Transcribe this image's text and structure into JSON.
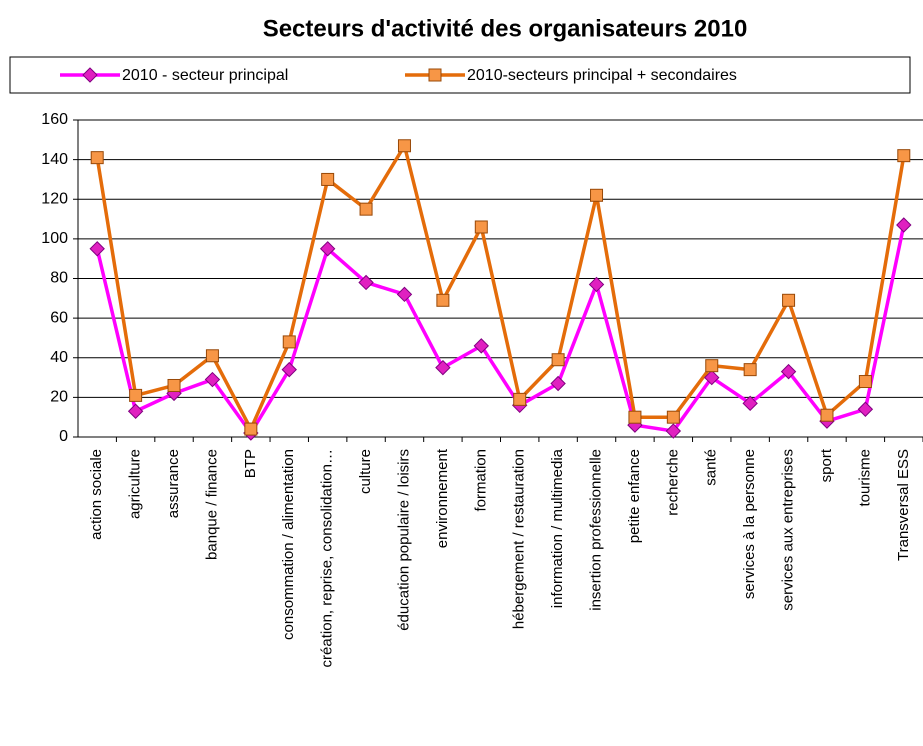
{
  "chart_data": {
    "type": "line",
    "title": "Secteurs d'activité des organisateurs 2010",
    "categories": [
      "action sociale",
      "agriculture",
      "assurance",
      "banque / finance",
      "BTP",
      "consommation / alimentation",
      "création, reprise, consolidation…",
      "culture",
      "éducation populaire / loisirs",
      "environnement",
      "formation",
      "hébergement / restauration",
      "information / multimedia",
      "insertion professionnelle",
      "petite enfance",
      "recherche",
      "santé",
      "services à la personne",
      "services aux entreprises",
      "sport",
      "tourisme",
      "Transversal ESS"
    ],
    "series": [
      {
        "name": "2010 - secteur principal",
        "color": "#ff00ff",
        "marker": "diamond",
        "values": [
          95,
          13,
          22,
          29,
          2,
          34,
          95,
          78,
          72,
          35,
          46,
          16,
          27,
          77,
          6,
          3,
          30,
          17,
          33,
          8,
          14,
          107
        ]
      },
      {
        "name": "2010-secteurs principal + secondaires",
        "color": "#e46c0a",
        "marker": "square",
        "values": [
          141,
          21,
          26,
          41,
          4,
          48,
          130,
          115,
          147,
          69,
          106,
          19,
          39,
          122,
          10,
          10,
          36,
          34,
          69,
          11,
          28,
          142
        ]
      }
    ],
    "ylim": [
      0,
      160
    ],
    "yticks": [
      0,
      20,
      40,
      60,
      80,
      100,
      120,
      140,
      160
    ],
    "grid": true,
    "legend": "top"
  }
}
